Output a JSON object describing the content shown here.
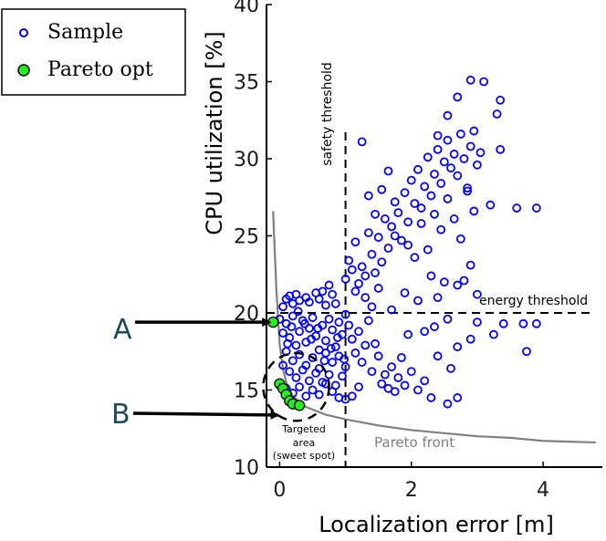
{
  "chart_data": {
    "type": "scatter",
    "xlabel": "Localization error [m]",
    "ylabel": "CPU utilization [%]",
    "xlim": [
      -0.2,
      4.9
    ],
    "ylim": [
      10,
      40
    ],
    "xticks": [
      0,
      2,
      4
    ],
    "yticks": [
      10,
      15,
      20,
      25,
      30,
      35,
      40
    ],
    "legend": {
      "position": "top-left",
      "entries": [
        "Sample",
        "Pareto opt"
      ]
    },
    "colors": {
      "sample": "#0000ff",
      "pareto": "#22ee22",
      "front": "#808080"
    },
    "series": [
      {
        "name": "Sample",
        "points": [
          [
            0.05,
            20.4
          ],
          [
            0.1,
            20.9
          ],
          [
            0.15,
            21.1
          ],
          [
            0.2,
            20.6
          ],
          [
            0.25,
            21.2
          ],
          [
            0.3,
            20.8
          ],
          [
            0.4,
            21.0
          ],
          [
            0.45,
            20.7
          ],
          [
            0.55,
            21.3
          ],
          [
            0.6,
            20.9
          ],
          [
            0.65,
            21.4
          ],
          [
            0.7,
            20.5
          ],
          [
            0.75,
            21.8
          ],
          [
            0.8,
            21.2
          ],
          [
            0.85,
            20.6
          ],
          [
            0.0,
            19.6
          ],
          [
            0.05,
            18.7
          ],
          [
            0.1,
            19.3
          ],
          [
            0.15,
            18.4
          ],
          [
            0.2,
            19.8
          ],
          [
            0.25,
            17.9
          ],
          [
            0.3,
            18.8
          ],
          [
            0.35,
            19.5
          ],
          [
            0.4,
            18.1
          ],
          [
            0.45,
            19.0
          ],
          [
            0.5,
            19.7
          ],
          [
            0.55,
            18.5
          ],
          [
            0.6,
            17.6
          ],
          [
            0.65,
            19.2
          ],
          [
            0.7,
            18.2
          ],
          [
            0.75,
            19.6
          ],
          [
            0.8,
            18.9
          ],
          [
            0.85,
            17.8
          ],
          [
            0.9,
            19.4
          ],
          [
            0.95,
            18.6
          ],
          [
            1.0,
            19.9
          ],
          [
            0.1,
            17.5
          ],
          [
            0.2,
            16.9
          ],
          [
            0.3,
            17.3
          ],
          [
            0.4,
            16.6
          ],
          [
            0.5,
            17.1
          ],
          [
            0.6,
            16.4
          ],
          [
            0.7,
            17.4
          ],
          [
            0.8,
            16.8
          ],
          [
            0.9,
            17.2
          ],
          [
            1.0,
            16.5
          ],
          [
            0.15,
            16.2
          ],
          [
            0.25,
            15.8
          ],
          [
            0.35,
            16.3
          ],
          [
            0.45,
            15.6
          ],
          [
            0.55,
            16.1
          ],
          [
            0.65,
            15.5
          ],
          [
            0.75,
            16.0
          ],
          [
            0.85,
            15.3
          ],
          [
            0.95,
            15.9
          ],
          [
            0.1,
            15.1
          ],
          [
            0.2,
            14.8
          ],
          [
            0.3,
            15.2
          ],
          [
            0.4,
            14.6
          ],
          [
            0.5,
            15.0
          ],
          [
            0.6,
            14.7
          ],
          [
            0.7,
            15.4
          ],
          [
            0.8,
            14.9
          ],
          [
            0.9,
            14.5
          ],
          [
            0.05,
            16.6
          ],
          [
            0.12,
            18.0
          ],
          [
            0.18,
            19.1
          ],
          [
            0.28,
            20.1
          ],
          [
            0.38,
            19.3
          ],
          [
            0.48,
            18.3
          ],
          [
            0.58,
            19.0
          ],
          [
            0.68,
            16.9
          ],
          [
            0.78,
            17.7
          ],
          [
            0.88,
            18.4
          ],
          [
            0.98,
            17.0
          ],
          [
            1.05,
            19.2
          ],
          [
            1.1,
            18.3
          ],
          [
            1.15,
            17.4
          ],
          [
            1.2,
            18.8
          ],
          [
            1.25,
            16.8
          ],
          [
            1.3,
            17.9
          ],
          [
            1.35,
            19.5
          ],
          [
            1.4,
            16.2
          ],
          [
            1.45,
            18.0
          ],
          [
            1.5,
            17.2
          ],
          [
            1.55,
            15.4
          ],
          [
            1.6,
            16.0
          ],
          [
            1.65,
            15.1
          ],
          [
            1.7,
            16.5
          ],
          [
            1.75,
            14.9
          ],
          [
            1.8,
            15.8
          ],
          [
            1.9,
            15.3
          ],
          [
            2.0,
            16.2
          ],
          [
            2.1,
            15.0
          ],
          [
            2.2,
            15.6
          ],
          [
            2.4,
            17.2
          ],
          [
            2.6,
            16.4
          ],
          [
            2.7,
            17.8
          ],
          [
            1.2,
            15.2
          ],
          [
            1.1,
            14.6
          ],
          [
            1.0,
            14.4
          ],
          [
            2.3,
            14.5
          ],
          [
            2.55,
            14.1
          ],
          [
            1.85,
            17.1
          ],
          [
            1.95,
            18.6
          ],
          [
            2.35,
            19.1
          ],
          [
            1.0,
            22.2
          ],
          [
            1.05,
            23.4
          ],
          [
            1.1,
            22.8
          ],
          [
            1.15,
            24.6
          ],
          [
            1.2,
            21.9
          ],
          [
            1.25,
            23.0
          ],
          [
            1.3,
            22.4
          ],
          [
            1.35,
            25.2
          ],
          [
            1.4,
            23.8
          ],
          [
            1.45,
            22.6
          ],
          [
            1.5,
            24.9
          ],
          [
            1.55,
            23.3
          ],
          [
            1.6,
            26.1
          ],
          [
            1.65,
            24.2
          ],
          [
            1.7,
            25.6
          ],
          [
            1.75,
            27.2
          ],
          [
            1.8,
            26.5
          ],
          [
            1.85,
            24.7
          ],
          [
            1.9,
            27.8
          ],
          [
            1.95,
            25.9
          ],
          [
            2.0,
            28.6
          ],
          [
            2.05,
            27.1
          ],
          [
            2.1,
            29.3
          ],
          [
            2.15,
            26.8
          ],
          [
            2.2,
            28.2
          ],
          [
            2.25,
            30.1
          ],
          [
            2.3,
            27.6
          ],
          [
            2.35,
            29.0
          ],
          [
            2.4,
            30.6
          ],
          [
            2.45,
            28.4
          ],
          [
            2.5,
            29.8
          ],
          [
            2.55,
            31.2
          ],
          [
            2.6,
            29.4
          ],
          [
            2.65,
            30.3
          ],
          [
            2.7,
            28.9
          ],
          [
            2.75,
            31.6
          ],
          [
            2.8,
            30.0
          ],
          [
            2.85,
            28.1
          ],
          [
            2.9,
            30.8
          ],
          [
            2.95,
            31.8
          ],
          [
            3.0,
            29.6
          ],
          [
            3.05,
            30.4
          ],
          [
            1.25,
            31.1
          ],
          [
            1.35,
            27.6
          ],
          [
            1.45,
            26.4
          ],
          [
            1.55,
            28.0
          ],
          [
            1.65,
            29.2
          ],
          [
            1.75,
            25.0
          ],
          [
            1.95,
            24.4
          ],
          [
            2.05,
            23.6
          ],
          [
            2.15,
            25.8
          ],
          [
            2.25,
            24.1
          ],
          [
            2.35,
            26.4
          ],
          [
            2.45,
            25.4
          ],
          [
            2.55,
            27.4
          ],
          [
            2.65,
            26.1
          ],
          [
            2.75,
            24.8
          ],
          [
            2.85,
            27.9
          ],
          [
            2.95,
            26.6
          ],
          [
            1.15,
            21.4
          ],
          [
            1.3,
            21.0
          ],
          [
            1.4,
            20.4
          ],
          [
            1.5,
            21.6
          ],
          [
            1.7,
            20.2
          ],
          [
            1.9,
            21.3
          ],
          [
            2.1,
            20.8
          ],
          [
            2.3,
            22.4
          ],
          [
            2.5,
            22.0
          ],
          [
            2.7,
            21.8
          ],
          [
            2.9,
            23.1
          ],
          [
            2.7,
            34.0
          ],
          [
            2.9,
            35.1
          ],
          [
            3.1,
            35.0
          ],
          [
            3.35,
            33.8
          ],
          [
            3.3,
            32.9
          ],
          [
            3.35,
            30.6
          ],
          [
            3.6,
            26.8
          ],
          [
            3.9,
            26.8
          ],
          [
            2.4,
            31.5
          ],
          [
            2.55,
            32.8
          ],
          [
            3.2,
            27.0
          ],
          [
            2.8,
            22.1
          ],
          [
            3.0,
            21.2
          ],
          [
            3.4,
            19.3
          ],
          [
            3.25,
            18.6
          ],
          [
            3.0,
            19.4
          ],
          [
            3.7,
            19.3
          ],
          [
            3.9,
            19.3
          ],
          [
            3.75,
            17.5
          ],
          [
            2.9,
            18.3
          ],
          [
            2.55,
            19.6
          ],
          [
            2.7,
            14.5
          ],
          [
            2.2,
            18.8
          ],
          [
            2.4,
            21.0
          ]
        ]
      },
      {
        "name": "Pareto opt",
        "points": [
          [
            -0.1,
            19.4
          ],
          [
            0.0,
            15.4
          ],
          [
            0.05,
            15.1
          ],
          [
            0.1,
            14.7
          ],
          [
            0.15,
            14.3
          ],
          [
            0.2,
            14.1
          ],
          [
            0.3,
            14.0
          ]
        ]
      }
    ],
    "pareto_front_curve": [
      [
        -0.1,
        26.6
      ],
      [
        -0.05,
        21.5
      ],
      [
        0.0,
        18.0
      ],
      [
        0.05,
        16.4
      ],
      [
        0.1,
        15.5
      ],
      [
        0.2,
        14.6
      ],
      [
        0.4,
        13.9
      ],
      [
        0.7,
        13.4
      ],
      [
        1.0,
        13.1
      ],
      [
        1.5,
        12.7
      ],
      [
        2.0,
        12.4
      ],
      [
        2.5,
        12.2
      ],
      [
        3.0,
        12.0
      ],
      [
        3.5,
        11.9
      ],
      [
        4.0,
        11.7
      ],
      [
        4.8,
        11.6
      ]
    ],
    "thresholds": {
      "safety_x": 1.0,
      "energy_y": 20.0
    },
    "annotations": {
      "safety_label": "safety threshold",
      "energy_label": "energy threshold",
      "target_line1": "Targeted",
      "target_line2": "area",
      "target_line3": "(sweet spot)",
      "front_label": "Pareto front",
      "callout_a": "A",
      "callout_b": "B"
    },
    "callouts": [
      {
        "label": "A",
        "target": [
          -0.1,
          19.4
        ]
      },
      {
        "label": "B",
        "target": [
          0.0,
          14.5
        ]
      }
    ],
    "target_area": {
      "center": [
        0.25,
        15.2
      ],
      "radius_x": 0.5,
      "radius_y": 2.2
    }
  }
}
